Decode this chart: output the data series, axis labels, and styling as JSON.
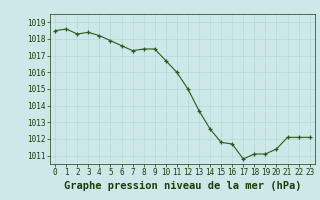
{
  "x": [
    0,
    1,
    2,
    3,
    4,
    5,
    6,
    7,
    8,
    9,
    10,
    11,
    12,
    13,
    14,
    15,
    16,
    17,
    18,
    19,
    20,
    21,
    22,
    23
  ],
  "y": [
    1018.5,
    1018.6,
    1018.3,
    1018.4,
    1018.2,
    1017.9,
    1017.6,
    1017.3,
    1017.4,
    1017.4,
    1016.7,
    1016.0,
    1015.0,
    1013.7,
    1012.6,
    1011.8,
    1011.7,
    1010.8,
    1011.1,
    1011.1,
    1011.4,
    1012.1,
    1012.1,
    1012.1
  ],
  "line_color": "#2d5a1b",
  "marker_color": "#2d5a1b",
  "bg_color": "#cce8e8",
  "grid_color": "#b8d8d8",
  "xlabel": "Graphe pression niveau de la mer (hPa)",
  "xlabel_color": "#1a3d0a",
  "tick_color": "#1a3d0a",
  "ylim_min": 1010.5,
  "ylim_max": 1019.5,
  "yticks": [
    1011,
    1012,
    1013,
    1014,
    1015,
    1016,
    1017,
    1018,
    1019
  ],
  "xticks": [
    0,
    1,
    2,
    3,
    4,
    5,
    6,
    7,
    8,
    9,
    10,
    11,
    12,
    13,
    14,
    15,
    16,
    17,
    18,
    19,
    20,
    21,
    22,
    23
  ],
  "tick_fontsize": 5.5,
  "xlabel_fontsize": 7.5,
  "linewidth": 0.8,
  "markersize": 3.0
}
